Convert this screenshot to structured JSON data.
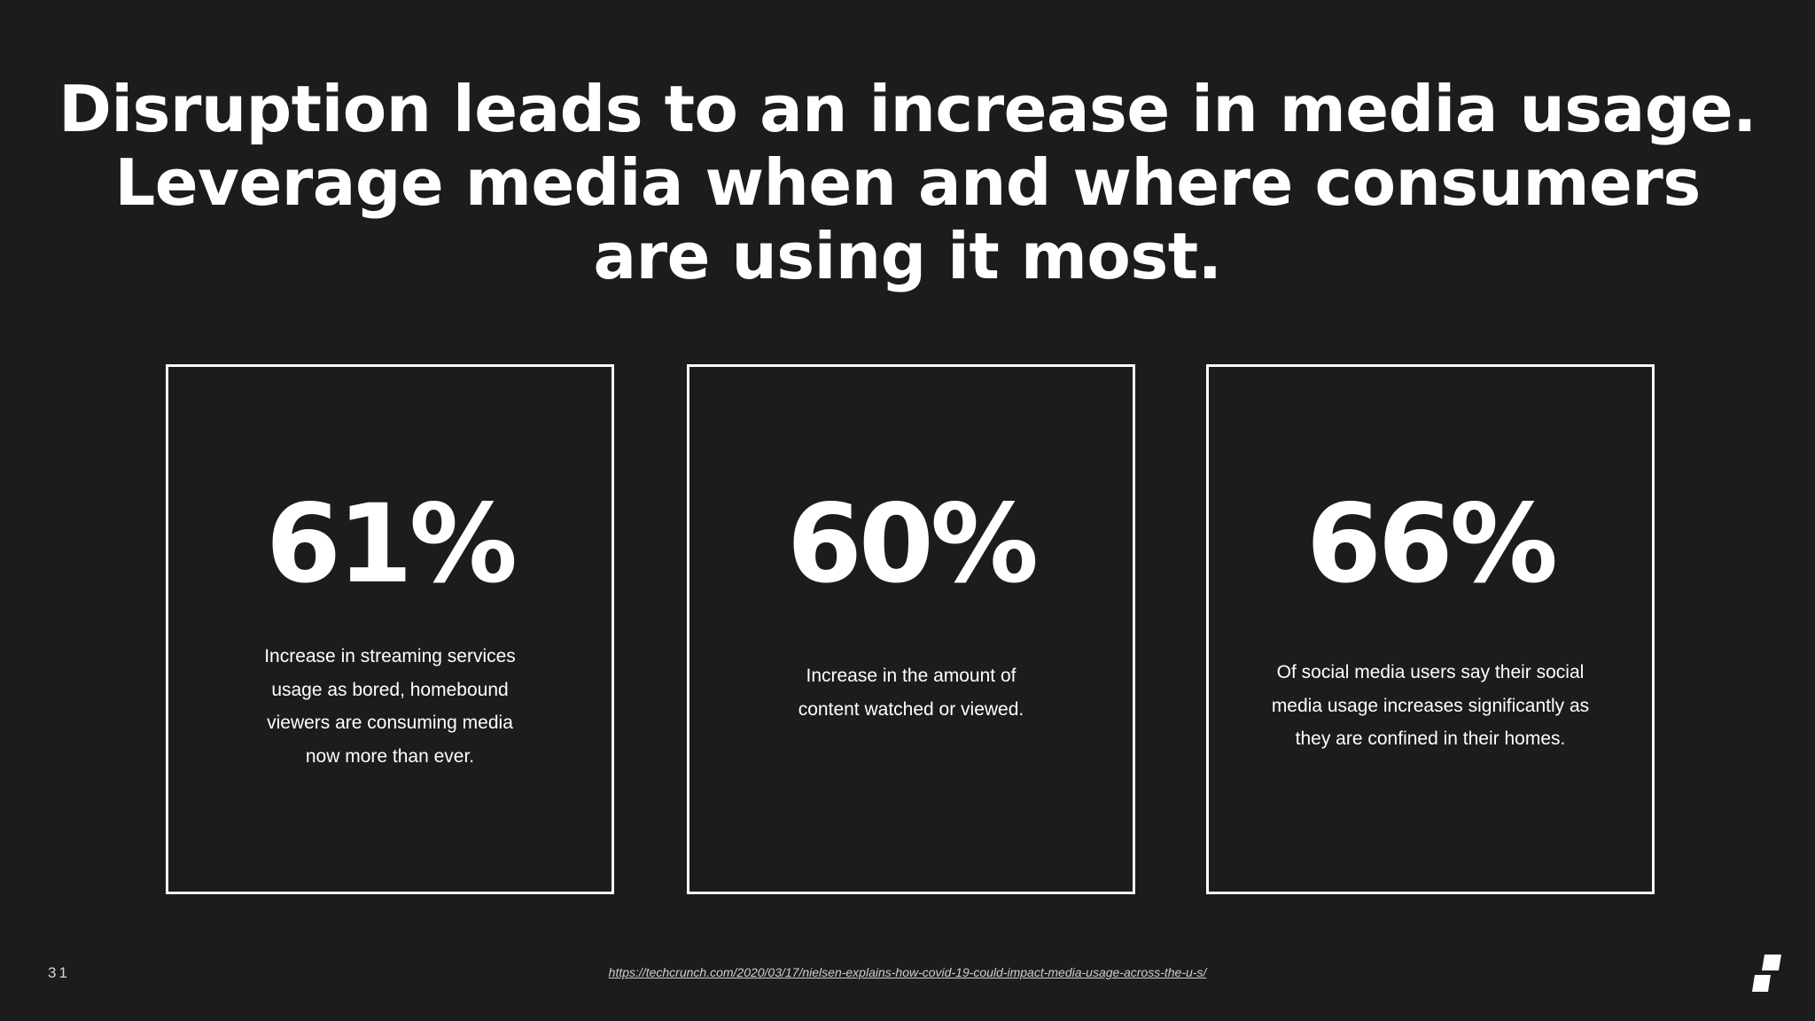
{
  "slide": {
    "title_lines": [
      "Disruption leads to an increase in media usage.",
      "Leverage media when and where consumers",
      "are using it most."
    ],
    "cards": [
      {
        "stat": "61%",
        "description_lines": [
          "Increase in streaming services",
          "usage as bored, homebound",
          "viewers are consuming media",
          "now more than ever."
        ]
      },
      {
        "stat": "60%",
        "description_lines": [
          "Increase in the amount of",
          "content watched or viewed."
        ]
      },
      {
        "stat": "66%",
        "description_lines": [
          "Of social media users say their social",
          "media usage increases significantly as",
          "they are confined in their homes."
        ]
      }
    ],
    "page_number": "31",
    "source_url": "https://techcrunch.com/2020/03/17/nielsen-explains-how-covid-19-could-impact-media-usage-across-the-u-s/",
    "logo_icon": "brand-logo-icon"
  },
  "colors": {
    "background": "#1c1c1c",
    "foreground": "#ffffff",
    "muted_text": "#cfcfcf"
  }
}
